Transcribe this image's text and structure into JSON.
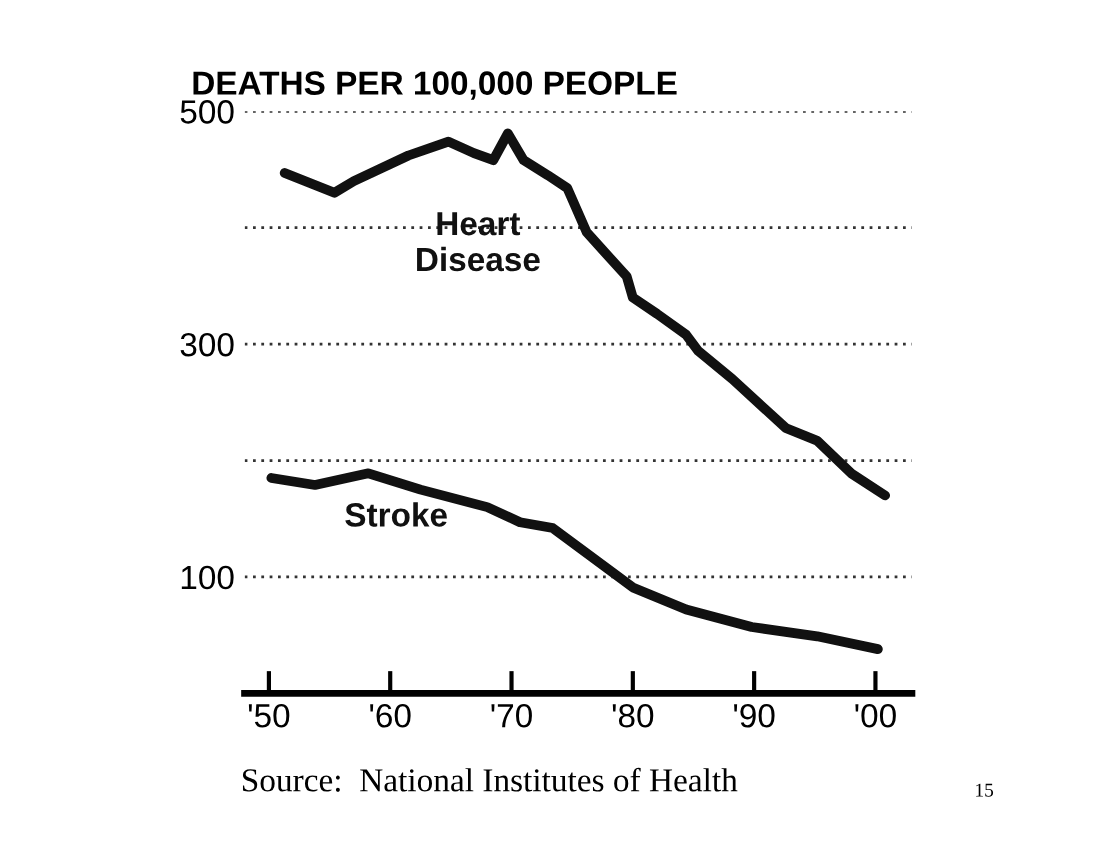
{
  "chart_data": {
    "type": "line",
    "title": "DEATHS PER 100,000 PEOPLE",
    "series": [
      {
        "name": "Heart\nDisease",
        "color": "#111111",
        "x": [
          1951.3,
          1955.4,
          1957,
          1961.5,
          1964.8,
          1966.9,
          1968.5,
          1969.7,
          1971,
          1973,
          1974.6,
          1976.2,
          1979.5,
          1980,
          1982,
          1984.4,
          1985.4,
          1988.2,
          1992.6,
          1995.2,
          1998,
          2000.8
        ],
        "values": [
          447,
          430,
          440,
          462,
          474,
          464,
          458,
          481,
          458,
          445,
          434,
          396,
          358,
          340,
          326,
          308,
          294,
          270,
          228,
          217,
          189,
          170
        ]
      },
      {
        "name": "Stroke",
        "color": "#111111",
        "x": [
          1950.2,
          1953.8,
          1958.2,
          1962.5,
          1968,
          1970.7,
          1973.4,
          1975.6,
          1980,
          1984.4,
          1989.8,
          1995.2,
          2000.2
        ],
        "values": [
          185,
          179,
          189,
          175,
          160,
          147,
          142,
          125,
          91,
          72,
          57,
          49,
          38
        ]
      }
    ],
    "xlim": [
      1948,
      2003
    ],
    "xticks": [
      {
        "value": 1950,
        "label": "'50"
      },
      {
        "value": 1960,
        "label": "'60"
      },
      {
        "value": 1970,
        "label": "'70"
      },
      {
        "value": 1980,
        "label": "'80"
      },
      {
        "value": 1990,
        "label": "'90"
      },
      {
        "value": 2000,
        "label": "'00"
      }
    ],
    "ylim": [
      0,
      500
    ],
    "yticks": [
      {
        "value": 100,
        "label": "100"
      },
      {
        "value": 200,
        "label": null
      },
      {
        "value": 300,
        "label": "300"
      },
      {
        "value": 400,
        "label": null
      },
      {
        "value": 500,
        "label": "500"
      }
    ],
    "grid": "y",
    "legend": false,
    "marker": "none",
    "line_style": "solid",
    "annotations": [
      "Source:  National Institutes of Health",
      "15"
    ]
  }
}
